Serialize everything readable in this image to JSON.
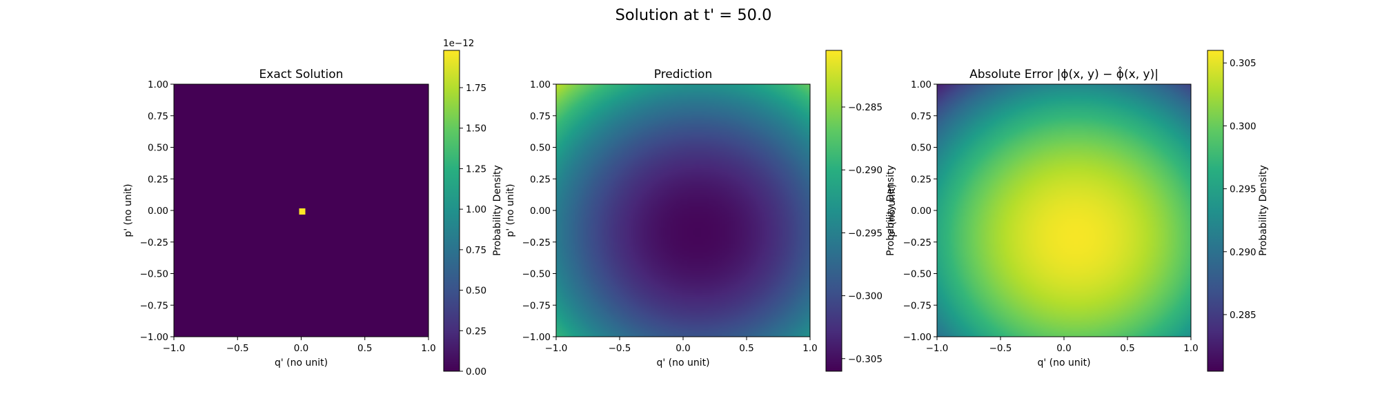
{
  "suptitle": "Solution at t' = 50.0",
  "chart_data": [
    {
      "type": "heatmap",
      "title": "Exact Solution",
      "xlabel": "q' (no unit)",
      "ylabel": "p' (no unit)",
      "xlim": [
        -1.0,
        1.0
      ],
      "ylim": [
        -1.0,
        1.0
      ],
      "xticks": [
        "−1.0",
        "−0.5",
        "0.0",
        "0.5",
        "1.0"
      ],
      "yticks": [
        "−1.00",
        "−0.75",
        "−0.50",
        "−0.25",
        "0.00",
        "0.25",
        "0.50",
        "0.75",
        "1.00"
      ],
      "field": "delta",
      "spike_location": [
        0.0,
        0.0
      ],
      "colorbar": {
        "label": "Probability Density",
        "range": [
          0.0,
          1.98e-12
        ],
        "offset_text": "1e−12",
        "ticks": [
          {
            "v": 0.0,
            "label": "0.00"
          },
          {
            "v": 0.25,
            "label": "0.25"
          },
          {
            "v": 0.5,
            "label": "0.50"
          },
          {
            "v": 0.75,
            "label": "0.75"
          },
          {
            "v": 1.0,
            "label": "1.00"
          },
          {
            "v": 1.25,
            "label": "1.25"
          },
          {
            "v": 1.5,
            "label": "1.50"
          },
          {
            "v": 1.75,
            "label": "1.75"
          }
        ],
        "tick_scale": 1e-12
      }
    },
    {
      "type": "heatmap",
      "title": "Prediction",
      "xlabel": "q' (no unit)",
      "ylabel": "p' (no unit)",
      "xlim": [
        -1.0,
        1.0
      ],
      "ylim": [
        -1.0,
        1.0
      ],
      "xticks": [
        "−1.0",
        "−0.5",
        "0.0",
        "0.5",
        "1.0"
      ],
      "yticks": [
        "−1.00",
        "−0.75",
        "−0.50",
        "−0.25",
        "0.00",
        "0.25",
        "0.50",
        "0.75",
        "1.00"
      ],
      "field": "bowl",
      "bowl_center": [
        0.05,
        -0.15
      ],
      "colorbar": {
        "label": "Probability Density",
        "range": [
          -0.306,
          -0.2805
        ],
        "offset_text": "",
        "ticks": [
          {
            "v": -0.305,
            "label": "−0.305"
          },
          {
            "v": -0.3,
            "label": "−0.300"
          },
          {
            "v": -0.295,
            "label": "−0.295"
          },
          {
            "v": -0.29,
            "label": "−0.290"
          },
          {
            "v": -0.285,
            "label": "−0.285"
          }
        ],
        "tick_scale": 1
      }
    },
    {
      "type": "heatmap",
      "title": "Absolute Error |ϕ(x, y) − ϕ̂(x, y)|",
      "xlabel": "q' (no unit)",
      "ylabel": "p' (no unit)",
      "xlim": [
        -1.0,
        1.0
      ],
      "ylim": [
        -1.0,
        1.0
      ],
      "xticks": [
        "−1.0",
        "−0.5",
        "0.0",
        "0.5",
        "1.0"
      ],
      "yticks": [
        "−1.00",
        "−0.75",
        "−0.50",
        "−0.25",
        "0.00",
        "0.25",
        "0.50",
        "0.75",
        "1.00"
      ],
      "field": "dome",
      "dome_center": [
        0.05,
        -0.15
      ],
      "colorbar": {
        "label": "Probability Density",
        "range": [
          0.2805,
          0.306
        ],
        "offset_text": "",
        "ticks": [
          {
            "v": 0.285,
            "label": "0.285"
          },
          {
            "v": 0.29,
            "label": "0.290"
          },
          {
            "v": 0.295,
            "label": "0.295"
          },
          {
            "v": 0.3,
            "label": "0.300"
          },
          {
            "v": 0.305,
            "label": "0.305"
          }
        ],
        "tick_scale": 1
      }
    }
  ]
}
